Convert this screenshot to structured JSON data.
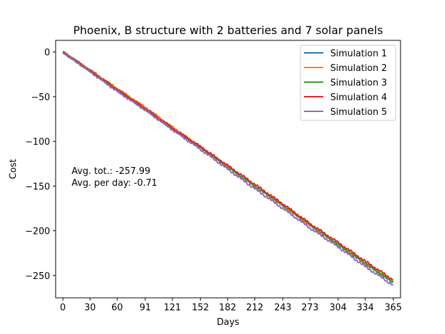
{
  "chart_data": {
    "type": "line",
    "title": "Phoenix, B structure with 2 batteries and 7 solar panels",
    "xlabel": "Days",
    "ylabel": "Cost",
    "xlim": [
      -8,
      373
    ],
    "ylim": [
      -275,
      13
    ],
    "xticks": [
      0,
      30,
      60,
      91,
      121,
      152,
      182,
      212,
      243,
      273,
      304,
      334,
      365
    ],
    "yticks": [
      0,
      -50,
      -100,
      -150,
      -200,
      -250
    ],
    "ytick_labels": [
      "0",
      "−50",
      "−100",
      "−150",
      "−200",
      "−250"
    ],
    "legend_position": "top-right",
    "annotations": [
      "Avg. tot.: -257.99",
      "Avg. per day: -0.71"
    ],
    "series": [
      {
        "name": "Simulation 1",
        "color": "#1f77b4",
        "x": [
          0,
          30,
          60,
          91,
          121,
          152,
          182,
          212,
          243,
          273,
          304,
          334,
          365
        ],
        "y": [
          0,
          -21,
          -43,
          -64,
          -86,
          -107,
          -128,
          -150,
          -172,
          -194,
          -216,
          -237,
          -258
        ]
      },
      {
        "name": "Simulation 2",
        "color": "#ff7f0e",
        "x": [
          0,
          30,
          60,
          91,
          121,
          152,
          182,
          212,
          243,
          273,
          304,
          334,
          365
        ],
        "y": [
          0,
          -20,
          -41,
          -62,
          -84,
          -106,
          -128,
          -150,
          -172,
          -194,
          -215,
          -236,
          -257
        ]
      },
      {
        "name": "Simulation 3",
        "color": "#2ca02c",
        "x": [
          0,
          30,
          60,
          91,
          121,
          152,
          182,
          212,
          243,
          273,
          304,
          334,
          365
        ],
        "y": [
          0,
          -21,
          -42,
          -64,
          -86,
          -107,
          -129,
          -150,
          -171,
          -193,
          -215,
          -236,
          -258
        ]
      },
      {
        "name": "Simulation 4",
        "color": "#d62728",
        "x": [
          0,
          30,
          60,
          91,
          121,
          152,
          182,
          212,
          243,
          273,
          304,
          334,
          365
        ],
        "y": [
          0,
          -21,
          -42,
          -63,
          -85,
          -106,
          -127,
          -148,
          -170,
          -192,
          -213,
          -234,
          -255
        ]
      },
      {
        "name": "Simulation 5",
        "color": "#9467bd",
        "x": [
          0,
          30,
          60,
          91,
          121,
          152,
          182,
          212,
          243,
          273,
          304,
          334,
          365
        ],
        "y": [
          0,
          -22,
          -44,
          -65,
          -87,
          -109,
          -131,
          -153,
          -175,
          -197,
          -218,
          -240,
          -261
        ]
      }
    ]
  }
}
